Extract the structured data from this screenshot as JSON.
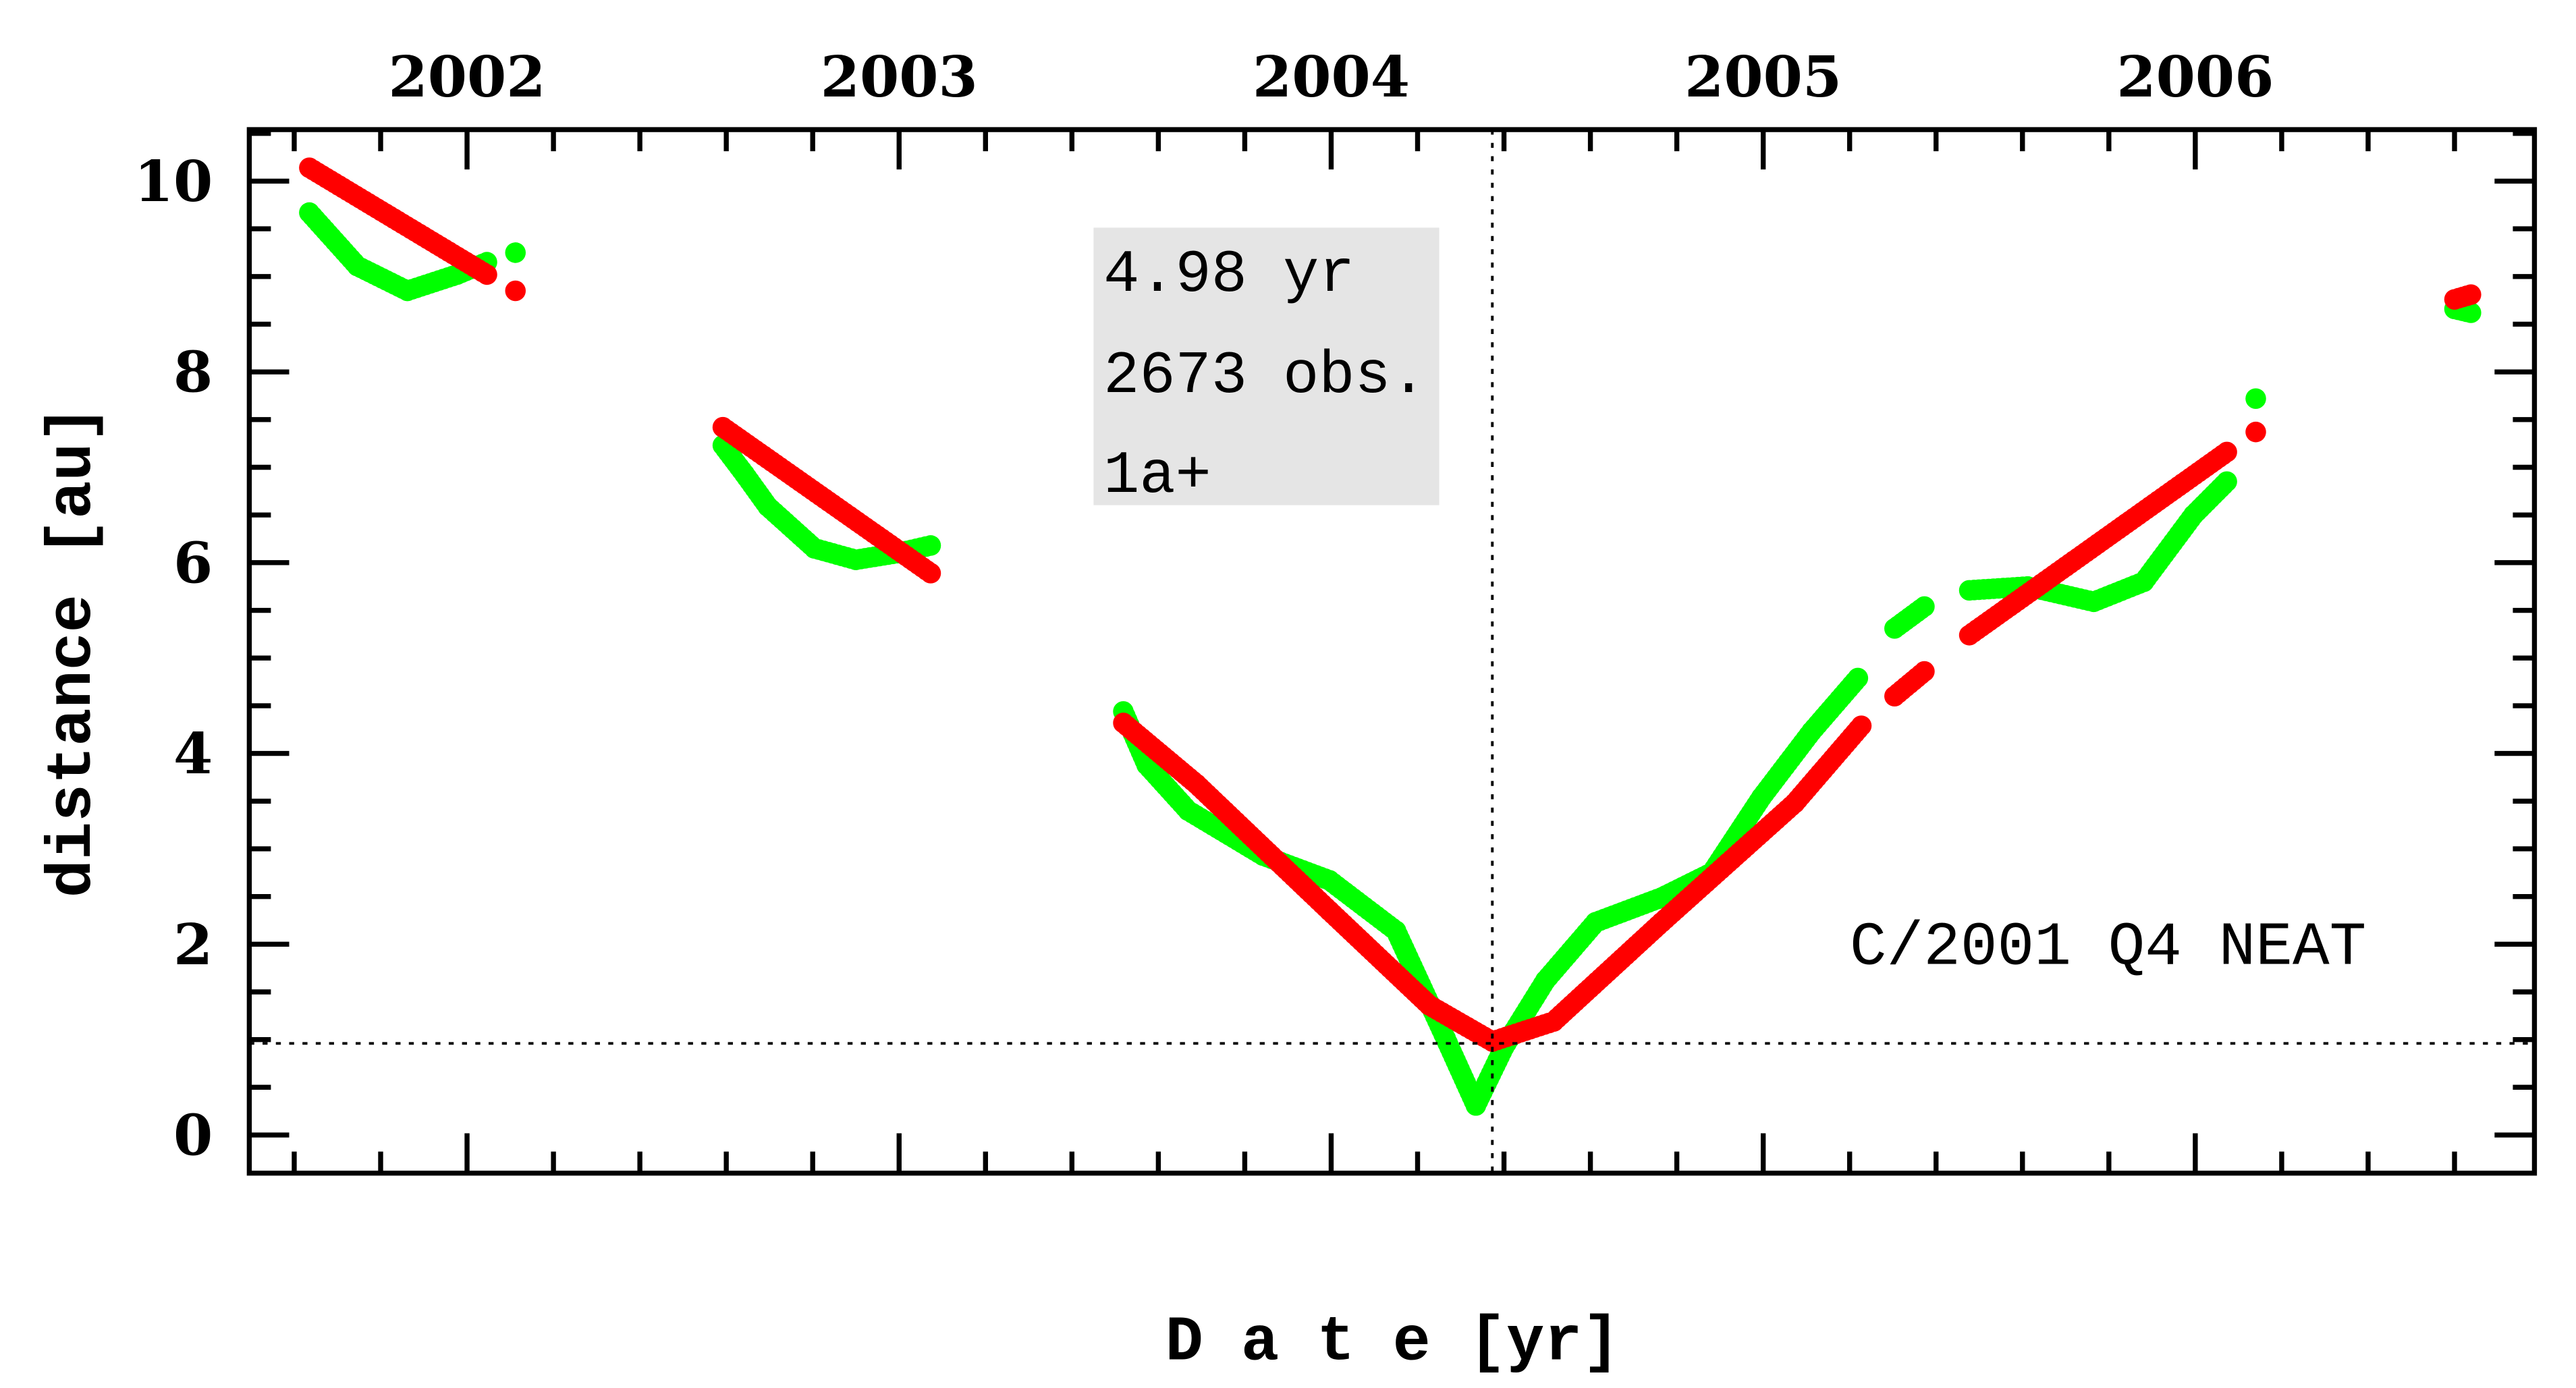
{
  "chart_data": {
    "type": "scatter",
    "title": "",
    "xlabel": "D a t e [yr]",
    "ylabel": "distance [au]",
    "xlim": [
      2001.496,
      2006.785
    ],
    "ylim": [
      -0.4,
      10.54
    ],
    "x_ticks": [
      "2002",
      "2003",
      "2004",
      "2005",
      "2006"
    ],
    "x_tick_values": [
      2002,
      2003,
      2004,
      2005,
      2006
    ],
    "x_minor_step": 0.2,
    "y_ticks": [
      "0",
      "2",
      "4",
      "6",
      "8",
      "10"
    ],
    "y_tick_values": [
      0,
      2,
      4,
      6,
      8,
      10
    ],
    "y_minor_step": 0.5,
    "grid": false,
    "reference_lines": {
      "horizontal_y": 0.96,
      "vertical_x": 2004.373
    },
    "annotation_box": [
      "4.98 yr",
      "2673 obs.",
      "1a+"
    ],
    "object_label": "C/2001 Q4 NEAT",
    "series": [
      {
        "color": "#00ff00",
        "segments": [
          [
            [
              2001.635,
              9.67
            ],
            [
              2001.746,
              9.11
            ],
            [
              2001.862,
              8.85
            ],
            [
              2001.977,
              9.02
            ],
            [
              2002.046,
              9.15
            ]
          ],
          [
            [
              2002.112,
              9.25
            ]
          ],
          [
            [
              2002.592,
              7.23
            ],
            [
              2002.642,
              6.93
            ],
            [
              2002.696,
              6.59
            ],
            [
              2002.804,
              6.15
            ],
            [
              2002.9,
              6.03
            ],
            [
              2002.996,
              6.1
            ],
            [
              2003.073,
              6.18
            ]
          ],
          [
            [
              2003.519,
              4.44
            ],
            [
              2003.573,
              3.88
            ],
            [
              2003.669,
              3.4
            ],
            [
              2003.842,
              2.93
            ],
            [
              2003.996,
              2.67
            ],
            [
              2004.15,
              2.14
            ],
            [
              2004.265,
              1.01
            ],
            [
              2004.335,
              0.31
            ],
            [
              2004.4,
              0.92
            ],
            [
              2004.496,
              1.62
            ],
            [
              2004.612,
              2.23
            ],
            [
              2004.765,
              2.49
            ],
            [
              2004.881,
              2.75
            ],
            [
              2004.996,
              3.54
            ],
            [
              2005.112,
              4.23
            ],
            [
              2005.219,
              4.79
            ]
          ],
          [
            [
              2005.304,
              5.31
            ],
            [
              2005.373,
              5.54
            ]
          ],
          [
            [
              2005.477,
              5.71
            ],
            [
              2005.612,
              5.75
            ],
            [
              2005.765,
              5.59
            ],
            [
              2005.881,
              5.8
            ],
            [
              2005.996,
              6.5
            ],
            [
              2006.073,
              6.85
            ]
          ],
          [
            [
              2006.14,
              7.72
            ]
          ],
          [
            [
              2006.6,
              8.66
            ],
            [
              2006.638,
              8.62
            ]
          ]
        ]
      },
      {
        "color": "#ff0000",
        "segments": [
          [
            [
              2001.635,
              10.14
            ],
            [
              2002.046,
              9.02
            ]
          ],
          [
            [
              2002.112,
              8.85
            ]
          ],
          [
            [
              2002.592,
              7.42
            ],
            [
              2003.073,
              5.89
            ]
          ],
          [
            [
              2003.519,
              4.32
            ],
            [
              2003.688,
              3.68
            ],
            [
              2003.996,
              2.35
            ],
            [
              2004.227,
              1.36
            ],
            [
              2004.373,
              0.98
            ],
            [
              2004.515,
              1.19
            ],
            [
              2004.765,
              2.23
            ],
            [
              2005.073,
              3.48
            ],
            [
              2005.227,
              4.29
            ]
          ],
          [
            [
              2005.304,
              4.6
            ],
            [
              2005.373,
              4.86
            ]
          ],
          [
            [
              2005.477,
              5.24
            ],
            [
              2006.073,
              7.16
            ]
          ],
          [
            [
              2006.14,
              7.37
            ]
          ],
          [
            [
              2006.6,
              8.76
            ],
            [
              2006.638,
              8.81
            ]
          ]
        ]
      }
    ]
  }
}
